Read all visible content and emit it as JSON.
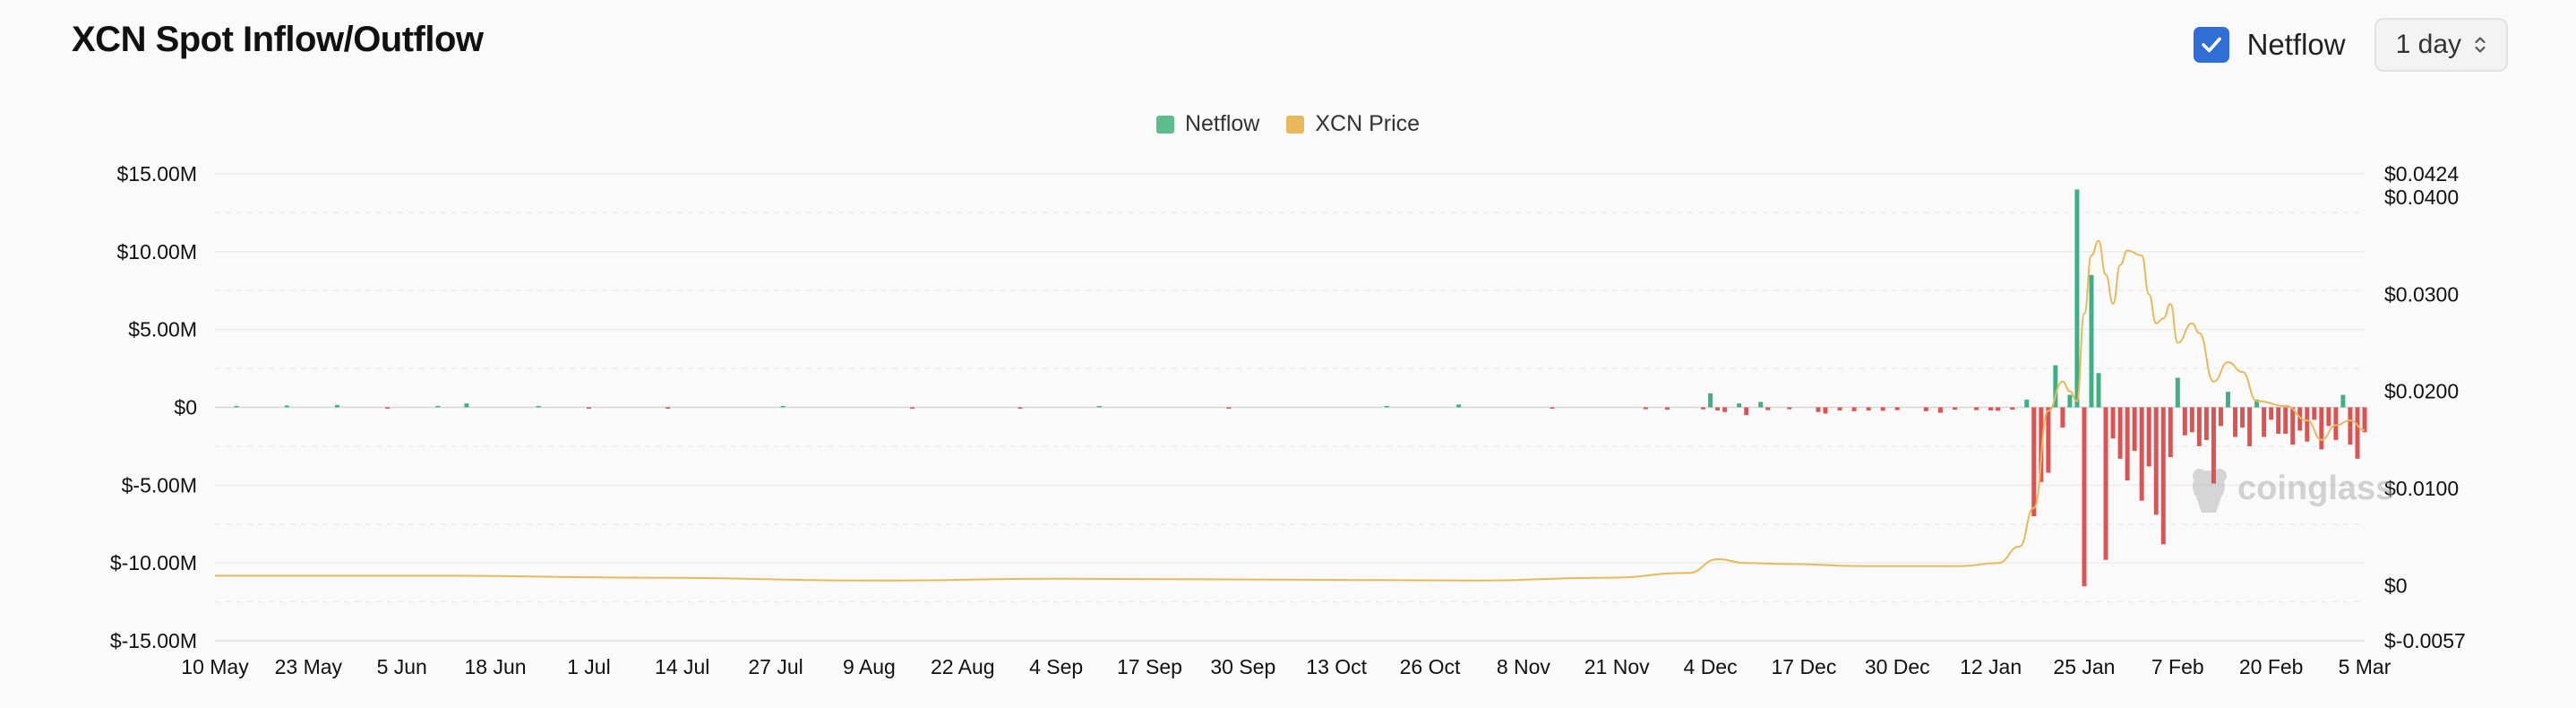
{
  "header": {
    "title": "XCN Spot Inflow/Outflow",
    "netflow_toggle_label": "Netflow",
    "netflow_toggle_checked": true,
    "interval_value": "1 day"
  },
  "chart_data": {
    "type": "bar+line",
    "legend": [
      {
        "name": "Netflow",
        "color": "#5bbd8b"
      },
      {
        "name": "XCN Price",
        "color": "#e8b95a"
      }
    ],
    "colors": {
      "inflow": "#3fb083",
      "outflow": "#e05252",
      "price": "#e8b95a"
    },
    "x_start": "2024-05-10",
    "x_end": "2025-03-05",
    "x_ticks": [
      "10 May",
      "23 May",
      "5 Jun",
      "18 Jun",
      "1 Jul",
      "14 Jul",
      "27 Jul",
      "9 Aug",
      "22 Aug",
      "4 Sep",
      "17 Sep",
      "30 Sep",
      "13 Oct",
      "26 Oct",
      "8 Nov",
      "21 Nov",
      "4 Dec",
      "17 Dec",
      "30 Dec",
      "12 Jan",
      "25 Jan",
      "7 Feb",
      "20 Feb",
      "5 Mar"
    ],
    "y_left": {
      "ylim": [
        -15000000,
        15000000
      ],
      "ticks": [
        15000000,
        10000000,
        5000000,
        0,
        -5000000,
        -10000000,
        -15000000
      ],
      "tick_labels": [
        "$15.00M",
        "$10.00M",
        "$5.00M",
        "$0",
        "$-5.00M",
        "$-10.00M",
        "$-15.00M"
      ]
    },
    "y_right": {
      "ylim": [
        -0.0057,
        0.0424
      ],
      "tick_labels": [
        "$0.0424",
        "$0.0400",
        "$0.0300",
        "$0.0200",
        "$0.0100",
        "$0",
        "$-0.0057"
      ],
      "tick_values": [
        0.0424,
        0.04,
        0.03,
        0.02,
        0.01,
        0,
        -0.0057
      ]
    },
    "netflow": [
      [
        "2024-05-13",
        80000
      ],
      [
        "2024-05-20",
        120000
      ],
      [
        "2024-05-27",
        150000
      ],
      [
        "2024-06-03",
        -90000
      ],
      [
        "2024-06-10",
        90000
      ],
      [
        "2024-06-14",
        250000
      ],
      [
        "2024-06-24",
        70000
      ],
      [
        "2024-07-01",
        -60000
      ],
      [
        "2024-07-12",
        -80000
      ],
      [
        "2024-07-28",
        60000
      ],
      [
        "2024-08-15",
        -40000
      ],
      [
        "2024-08-30",
        -60000
      ],
      [
        "2024-09-10",
        50000
      ],
      [
        "2024-09-28",
        -30000
      ],
      [
        "2024-10-20",
        40000
      ],
      [
        "2024-10-30",
        180000
      ],
      [
        "2024-11-12",
        -40000
      ],
      [
        "2024-11-25",
        -120000
      ],
      [
        "2024-11-28",
        -150000
      ],
      [
        "2024-12-03",
        -130000
      ],
      [
        "2024-12-04",
        900000
      ],
      [
        "2024-12-05",
        -200000
      ],
      [
        "2024-12-06",
        -300000
      ],
      [
        "2024-12-08",
        250000
      ],
      [
        "2024-12-09",
        -500000
      ],
      [
        "2024-12-11",
        350000
      ],
      [
        "2024-12-12",
        -180000
      ],
      [
        "2024-12-15",
        -120000
      ],
      [
        "2024-12-19",
        -300000
      ],
      [
        "2024-12-20",
        -400000
      ],
      [
        "2024-12-22",
        -200000
      ],
      [
        "2024-12-24",
        -250000
      ],
      [
        "2024-12-26",
        -200000
      ],
      [
        "2024-12-28",
        -220000
      ],
      [
        "2024-12-30",
        -180000
      ],
      [
        "2025-01-03",
        -250000
      ],
      [
        "2025-01-05",
        -350000
      ],
      [
        "2025-01-07",
        -150000
      ],
      [
        "2025-01-10",
        -180000
      ],
      [
        "2025-01-12",
        -200000
      ],
      [
        "2025-01-13",
        -220000
      ],
      [
        "2025-01-15",
        -150000
      ],
      [
        "2025-01-17",
        500000
      ],
      [
        "2025-01-18",
        -7000000
      ],
      [
        "2025-01-19",
        -4800000
      ],
      [
        "2025-01-20",
        -4200000
      ],
      [
        "2025-01-21",
        2700000
      ],
      [
        "2025-01-22",
        -1300000
      ],
      [
        "2025-01-23",
        800000
      ],
      [
        "2025-01-24",
        14000000
      ],
      [
        "2025-01-25",
        -11500000
      ],
      [
        "2025-01-26",
        8500000
      ],
      [
        "2025-01-27",
        2200000
      ],
      [
        "2025-01-28",
        -9800000
      ],
      [
        "2025-01-29",
        -2000000
      ],
      [
        "2025-01-30",
        -3300000
      ],
      [
        "2025-01-31",
        -4700000
      ],
      [
        "2025-02-01",
        -2800000
      ],
      [
        "2025-02-02",
        -6000000
      ],
      [
        "2025-02-03",
        -3800000
      ],
      [
        "2025-02-04",
        -6900000
      ],
      [
        "2025-02-05",
        -8800000
      ],
      [
        "2025-02-06",
        -3200000
      ],
      [
        "2025-02-07",
        1900000
      ],
      [
        "2025-02-08",
        -1800000
      ],
      [
        "2025-02-09",
        -1600000
      ],
      [
        "2025-02-10",
        -2500000
      ],
      [
        "2025-02-11",
        -2100000
      ],
      [
        "2025-02-12",
        -4900000
      ],
      [
        "2025-02-13",
        -1200000
      ],
      [
        "2025-02-14",
        1000000
      ],
      [
        "2025-02-15",
        -1900000
      ],
      [
        "2025-02-16",
        -1300000
      ],
      [
        "2025-02-17",
        -2500000
      ],
      [
        "2025-02-18",
        500000
      ],
      [
        "2025-02-19",
        -1900000
      ],
      [
        "2025-02-20",
        -800000
      ],
      [
        "2025-02-21",
        -1700000
      ],
      [
        "2025-02-22",
        -1700000
      ],
      [
        "2025-02-23",
        -2400000
      ],
      [
        "2025-02-24",
        -1500000
      ],
      [
        "2025-02-25",
        -2200000
      ],
      [
        "2025-02-26",
        -800000
      ],
      [
        "2025-02-27",
        -2700000
      ],
      [
        "2025-02-28",
        -1200000
      ],
      [
        "2025-03-01",
        -2100000
      ],
      [
        "2025-03-02",
        800000
      ],
      [
        "2025-03-03",
        -2400000
      ],
      [
        "2025-03-04",
        -3300000
      ],
      [
        "2025-03-05",
        -1600000
      ]
    ],
    "price": [
      [
        "2024-05-10",
        0.001
      ],
      [
        "2024-06-10",
        0.001
      ],
      [
        "2024-07-10",
        0.0008
      ],
      [
        "2024-08-10",
        0.0005
      ],
      [
        "2024-09-05",
        0.0007
      ],
      [
        "2024-10-05",
        0.0006
      ],
      [
        "2024-11-01",
        0.0005
      ],
      [
        "2024-11-20",
        0.0008
      ],
      [
        "2024-12-01",
        0.0013
      ],
      [
        "2024-12-05",
        0.0027
      ],
      [
        "2024-12-09",
        0.0023
      ],
      [
        "2024-12-15",
        0.0022
      ],
      [
        "2024-12-25",
        0.002
      ],
      [
        "2025-01-08",
        0.002
      ],
      [
        "2025-01-13",
        0.0023
      ],
      [
        "2025-01-16",
        0.004
      ],
      [
        "2025-01-18",
        0.008
      ],
      [
        "2025-01-20",
        0.018
      ],
      [
        "2025-01-22",
        0.021
      ],
      [
        "2025-01-23",
        0.02
      ],
      [
        "2025-01-24",
        0.019
      ],
      [
        "2025-01-25",
        0.028
      ],
      [
        "2025-01-26",
        0.034
      ],
      [
        "2025-01-27",
        0.0355
      ],
      [
        "2025-01-28",
        0.032
      ],
      [
        "2025-01-29",
        0.029
      ],
      [
        "2025-01-30",
        0.033
      ],
      [
        "2025-01-31",
        0.0345
      ],
      [
        "2025-02-02",
        0.034
      ],
      [
        "2025-02-03",
        0.03
      ],
      [
        "2025-02-04",
        0.027
      ],
      [
        "2025-02-05",
        0.0275
      ],
      [
        "2025-02-06",
        0.029
      ],
      [
        "2025-02-07",
        0.025
      ],
      [
        "2025-02-09",
        0.027
      ],
      [
        "2025-02-10",
        0.026
      ],
      [
        "2025-02-12",
        0.021
      ],
      [
        "2025-02-14",
        0.023
      ],
      [
        "2025-02-16",
        0.022
      ],
      [
        "2025-02-18",
        0.019
      ],
      [
        "2025-02-22",
        0.0185
      ],
      [
        "2025-02-25",
        0.017
      ],
      [
        "2025-02-27",
        0.015
      ],
      [
        "2025-03-01",
        0.0165
      ],
      [
        "2025-03-03",
        0.017
      ],
      [
        "2025-03-05",
        0.016
      ]
    ]
  },
  "watermark": {
    "text": "coinglass"
  }
}
